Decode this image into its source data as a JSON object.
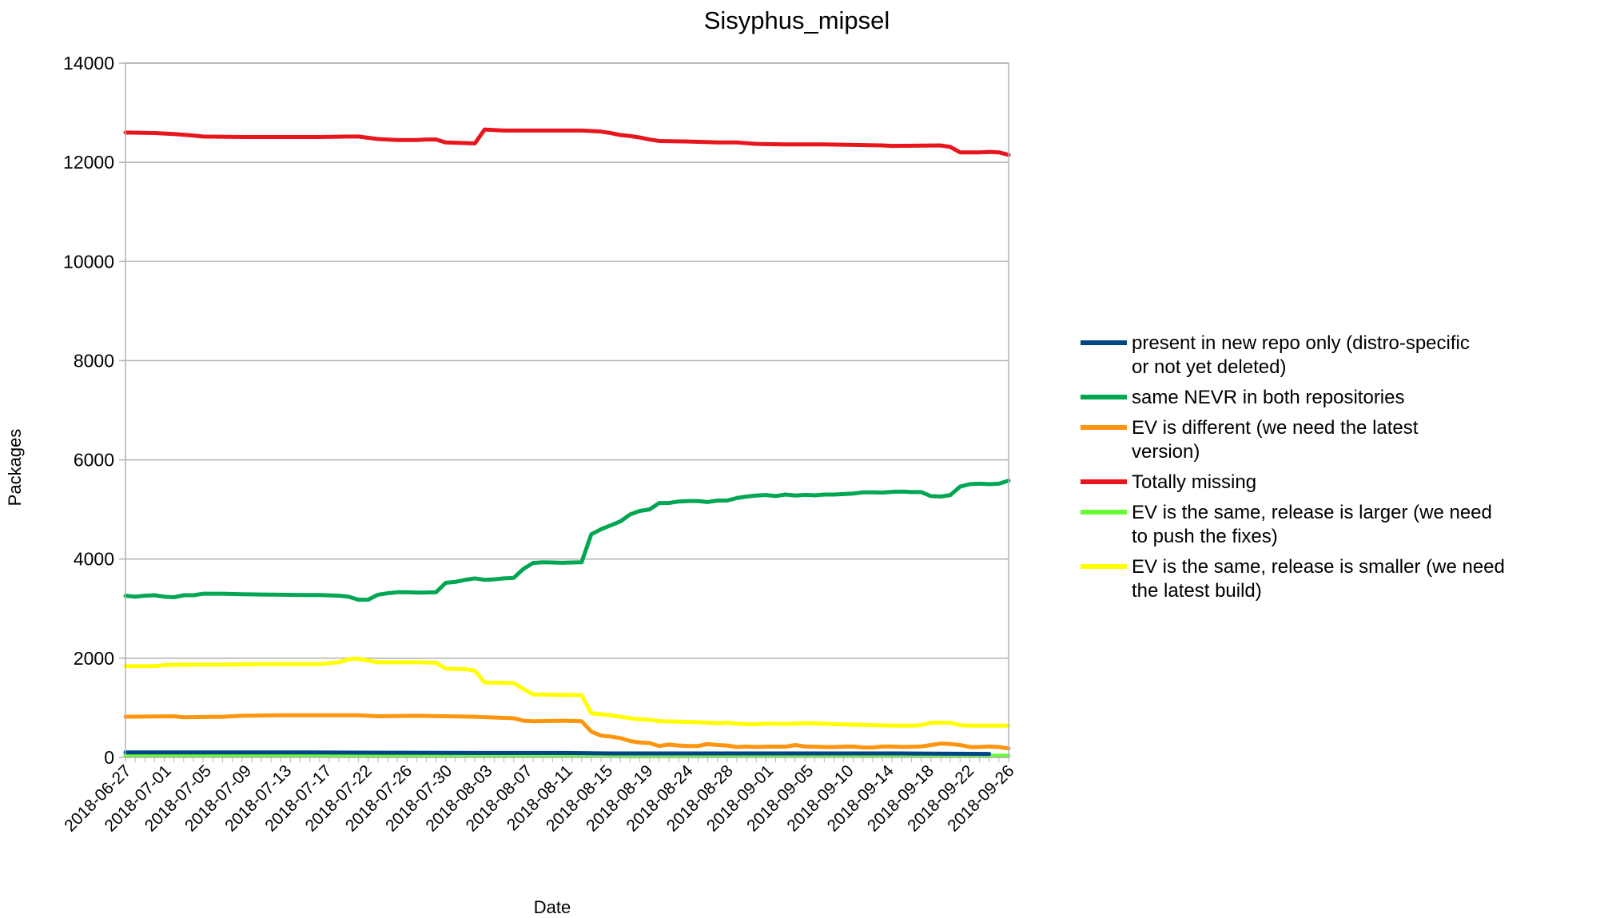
{
  "chart_data": {
    "type": "line",
    "title": "Sisyphus_mipsel",
    "xlabel": "Date",
    "ylabel": "Packages",
    "ylim": [
      0,
      14000
    ],
    "yticks": [
      0,
      2000,
      4000,
      6000,
      8000,
      10000,
      12000,
      14000
    ],
    "grid": "horizontal",
    "legend_position": "right",
    "xtick_labels": [
      "2018-06-27",
      "2018-07-01",
      "2018-07-05",
      "2018-07-09",
      "2018-07-13",
      "2018-07-17",
      "2018-07-22",
      "2018-07-26",
      "2018-07-30",
      "2018-08-03",
      "2018-08-07",
      "2018-08-11",
      "2018-08-15",
      "2018-08-19",
      "2018-08-24",
      "2018-08-28",
      "2018-09-01",
      "2018-09-05",
      "2018-09-10",
      "2018-09-14",
      "2018-09-18",
      "2018-09-22",
      "2018-09-26"
    ],
    "series": [
      {
        "name": "present in new repo only (distro-specific or not yet deleted)",
        "color": "#004586",
        "values": [
          [
            0,
            100
          ],
          [
            9,
            100
          ],
          [
            18,
            100
          ],
          [
            27,
            95
          ],
          [
            36,
            90
          ],
          [
            45,
            90
          ],
          [
            50,
            80
          ],
          [
            60,
            80
          ],
          [
            70,
            80
          ],
          [
            80,
            80
          ],
          [
            89,
            70
          ]
        ]
      },
      {
        "name": "same NEVR in both repositories",
        "color": "#00a651",
        "values": [
          [
            0,
            3260
          ],
          [
            1,
            3240
          ],
          [
            2,
            3260
          ],
          [
            3,
            3270
          ],
          [
            4,
            3240
          ],
          [
            5,
            3230
          ],
          [
            6,
            3270
          ],
          [
            7,
            3270
          ],
          [
            8,
            3300
          ],
          [
            10,
            3300
          ],
          [
            12,
            3290
          ],
          [
            14,
            3285
          ],
          [
            16,
            3280
          ],
          [
            18,
            3275
          ],
          [
            20,
            3275
          ],
          [
            22,
            3260
          ],
          [
            23,
            3240
          ],
          [
            24,
            3180
          ],
          [
            25,
            3180
          ],
          [
            26,
            3280
          ],
          [
            27,
            3310
          ],
          [
            28,
            3330
          ],
          [
            29,
            3330
          ],
          [
            30,
            3325
          ],
          [
            31,
            3325
          ],
          [
            32,
            3330
          ],
          [
            33,
            3520
          ],
          [
            34,
            3540
          ],
          [
            35,
            3580
          ],
          [
            36,
            3610
          ],
          [
            37,
            3580
          ],
          [
            38,
            3590
          ],
          [
            39,
            3610
          ],
          [
            40,
            3620
          ],
          [
            41,
            3800
          ],
          [
            42,
            3920
          ],
          [
            43,
            3935
          ],
          [
            44,
            3930
          ],
          [
            45,
            3925
          ],
          [
            46,
            3930
          ],
          [
            47,
            3935
          ],
          [
            48,
            4500
          ],
          [
            49,
            4600
          ],
          [
            50,
            4680
          ],
          [
            51,
            4760
          ],
          [
            52,
            4900
          ],
          [
            53,
            4970
          ],
          [
            54,
            5000
          ],
          [
            55,
            5130
          ],
          [
            56,
            5130
          ],
          [
            57,
            5160
          ],
          [
            58,
            5170
          ],
          [
            59,
            5170
          ],
          [
            60,
            5150
          ],
          [
            61,
            5180
          ],
          [
            62,
            5180
          ],
          [
            63,
            5230
          ],
          [
            64,
            5260
          ],
          [
            65,
            5280
          ],
          [
            66,
            5290
          ],
          [
            67,
            5270
          ],
          [
            68,
            5300
          ],
          [
            69,
            5280
          ],
          [
            70,
            5295
          ],
          [
            71,
            5285
          ],
          [
            72,
            5300
          ],
          [
            73,
            5300
          ],
          [
            74,
            5310
          ],
          [
            75,
            5320
          ],
          [
            76,
            5345
          ],
          [
            77,
            5345
          ],
          [
            78,
            5340
          ],
          [
            79,
            5355
          ],
          [
            80,
            5360
          ],
          [
            81,
            5350
          ],
          [
            82,
            5350
          ],
          [
            83,
            5270
          ],
          [
            84,
            5260
          ],
          [
            85,
            5290
          ],
          [
            86,
            5460
          ],
          [
            87,
            5510
          ],
          [
            88,
            5520
          ],
          [
            89,
            5510
          ],
          [
            90,
            5520
          ],
          [
            91,
            5580
          ]
        ]
      },
      {
        "name": "EV is different (we need the latest version)",
        "color": "#ff950e",
        "values": [
          [
            0,
            820
          ],
          [
            5,
            830
          ],
          [
            6,
            810
          ],
          [
            10,
            820
          ],
          [
            12,
            840
          ],
          [
            16,
            850
          ],
          [
            24,
            850
          ],
          [
            26,
            830
          ],
          [
            30,
            840
          ],
          [
            36,
            820
          ],
          [
            40,
            790
          ],
          [
            41,
            740
          ],
          [
            42,
            730
          ],
          [
            45,
            740
          ],
          [
            46,
            735
          ],
          [
            47,
            730
          ],
          [
            48,
            520
          ],
          [
            49,
            440
          ],
          [
            50,
            420
          ],
          [
            51,
            390
          ],
          [
            52,
            330
          ],
          [
            53,
            300
          ],
          [
            54,
            290
          ],
          [
            55,
            230
          ],
          [
            56,
            260
          ],
          [
            57,
            240
          ],
          [
            58,
            230
          ],
          [
            59,
            230
          ],
          [
            60,
            270
          ],
          [
            61,
            250
          ],
          [
            62,
            240
          ],
          [
            63,
            210
          ],
          [
            64,
            220
          ],
          [
            65,
            210
          ],
          [
            66,
            215
          ],
          [
            67,
            220
          ],
          [
            68,
            215
          ],
          [
            69,
            250
          ],
          [
            70,
            220
          ],
          [
            71,
            215
          ],
          [
            72,
            210
          ],
          [
            73,
            210
          ],
          [
            74,
            215
          ],
          [
            75,
            220
          ],
          [
            76,
            200
          ],
          [
            77,
            200
          ],
          [
            78,
            220
          ],
          [
            79,
            220
          ],
          [
            80,
            210
          ],
          [
            81,
            215
          ],
          [
            82,
            220
          ],
          [
            83,
            250
          ],
          [
            84,
            280
          ],
          [
            85,
            270
          ],
          [
            86,
            250
          ],
          [
            87,
            210
          ],
          [
            88,
            210
          ],
          [
            89,
            220
          ],
          [
            90,
            210
          ],
          [
            91,
            180
          ]
        ]
      },
      {
        "name": "Totally missing",
        "color": "#e8151d",
        "values": [
          [
            0,
            12600
          ],
          [
            3,
            12590
          ],
          [
            5,
            12570
          ],
          [
            7,
            12540
          ],
          [
            8,
            12520
          ],
          [
            12,
            12510
          ],
          [
            20,
            12510
          ],
          [
            23,
            12520
          ],
          [
            24,
            12520
          ],
          [
            26,
            12470
          ],
          [
            28,
            12450
          ],
          [
            30,
            12450
          ],
          [
            31,
            12460
          ],
          [
            32,
            12460
          ],
          [
            33,
            12400
          ],
          [
            36,
            12380
          ],
          [
            37,
            12660
          ],
          [
            39,
            12640
          ],
          [
            45,
            12640
          ],
          [
            47,
            12640
          ],
          [
            49,
            12620
          ],
          [
            50,
            12590
          ],
          [
            51,
            12550
          ],
          [
            52,
            12530
          ],
          [
            53,
            12500
          ],
          [
            54,
            12460
          ],
          [
            55,
            12430
          ],
          [
            58,
            12420
          ],
          [
            61,
            12400
          ],
          [
            63,
            12400
          ],
          [
            65,
            12370
          ],
          [
            68,
            12360
          ],
          [
            72,
            12360
          ],
          [
            78,
            12340
          ],
          [
            79,
            12330
          ],
          [
            84,
            12340
          ],
          [
            85,
            12310
          ],
          [
            86,
            12200
          ],
          [
            88,
            12200
          ],
          [
            89,
            12210
          ],
          [
            90,
            12200
          ],
          [
            91,
            12150
          ]
        ]
      },
      {
        "name": "EV is the same, release is larger (we need to push the fixes)",
        "color": "#66ff33",
        "values": [
          [
            0,
            40
          ],
          [
            25,
            40
          ],
          [
            40,
            45
          ],
          [
            48,
            45
          ],
          [
            49,
            30
          ],
          [
            52,
            20
          ],
          [
            60,
            25
          ],
          [
            70,
            30
          ],
          [
            80,
            30
          ],
          [
            91,
            35
          ]
        ]
      },
      {
        "name": "EV is the same, release is smaller (we need the latest build)",
        "color": "#ffff00",
        "values": [
          [
            0,
            1840
          ],
          [
            3,
            1840
          ],
          [
            4,
            1860
          ],
          [
            6,
            1870
          ],
          [
            10,
            1870
          ],
          [
            14,
            1880
          ],
          [
            20,
            1880
          ],
          [
            21,
            1900
          ],
          [
            22,
            1920
          ],
          [
            23,
            1980
          ],
          [
            24,
            1990
          ],
          [
            25,
            1950
          ],
          [
            26,
            1920
          ],
          [
            30,
            1920
          ],
          [
            32,
            1910
          ],
          [
            33,
            1790
          ],
          [
            35,
            1780
          ],
          [
            36,
            1750
          ],
          [
            37,
            1510
          ],
          [
            40,
            1500
          ],
          [
            41,
            1380
          ],
          [
            42,
            1270
          ],
          [
            45,
            1260
          ],
          [
            46,
            1260
          ],
          [
            47,
            1255
          ],
          [
            48,
            890
          ],
          [
            49,
            870
          ],
          [
            50,
            850
          ],
          [
            51,
            820
          ],
          [
            52,
            790
          ],
          [
            53,
            770
          ],
          [
            54,
            760
          ],
          [
            55,
            730
          ],
          [
            57,
            720
          ],
          [
            59,
            710
          ],
          [
            60,
            700
          ],
          [
            61,
            690
          ],
          [
            62,
            700
          ],
          [
            63,
            680
          ],
          [
            64,
            670
          ],
          [
            65,
            670
          ],
          [
            66,
            680
          ],
          [
            67,
            680
          ],
          [
            68,
            675
          ],
          [
            70,
            690
          ],
          [
            72,
            680
          ],
          [
            73,
            670
          ],
          [
            75,
            660
          ],
          [
            77,
            650
          ],
          [
            79,
            640
          ],
          [
            81,
            640
          ],
          [
            82,
            650
          ],
          [
            83,
            700
          ],
          [
            84,
            700
          ],
          [
            85,
            700
          ],
          [
            86,
            650
          ],
          [
            87,
            640
          ],
          [
            91,
            640
          ]
        ]
      }
    ]
  }
}
